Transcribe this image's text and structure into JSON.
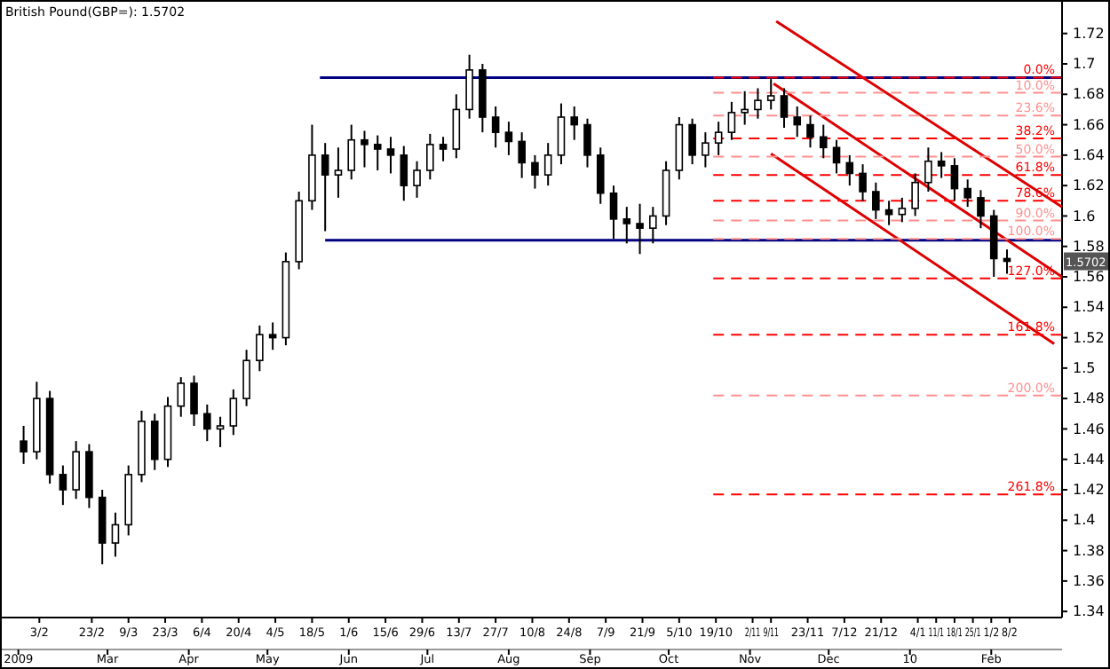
{
  "chart_data": {
    "type": "candlestick",
    "title": "British Pound(GBP=): 1.5702",
    "xlim": [
      "2009-01-19",
      "2010-02-28"
    ],
    "ylim": [
      1.336,
      1.742
    ],
    "yticks": [
      1.34,
      1.36,
      1.38,
      1.4,
      1.42,
      1.44,
      1.46,
      1.48,
      1.5,
      1.52,
      1.54,
      1.56,
      1.58,
      1.6,
      1.62,
      1.64,
      1.66,
      1.68,
      1.7,
      1.72
    ],
    "xticks": [
      {
        "value": "2009-02-03",
        "label": "3/2"
      },
      {
        "value": "2009-02-23",
        "label": "23/2"
      },
      {
        "value": "2009-03-09",
        "label": "9/3"
      },
      {
        "value": "2009-03-23",
        "label": "23/3"
      },
      {
        "value": "2009-04-06",
        "label": "6/4"
      },
      {
        "value": "2009-04-20",
        "label": "20/4"
      },
      {
        "value": "2009-05-04",
        "label": "4/5"
      },
      {
        "value": "2009-05-18",
        "label": "18/5"
      },
      {
        "value": "2009-06-01",
        "label": "1/6"
      },
      {
        "value": "2009-06-15",
        "label": "15/6"
      },
      {
        "value": "2009-06-29",
        "label": "29/6"
      },
      {
        "value": "2009-07-13",
        "label": "13/7"
      },
      {
        "value": "2009-07-27",
        "label": "27/7"
      },
      {
        "value": "2009-08-10",
        "label": "10/8"
      },
      {
        "value": "2009-08-24",
        "label": "24/8"
      },
      {
        "value": "2009-09-07",
        "label": "7/9"
      },
      {
        "value": "2009-09-21",
        "label": "21/9"
      },
      {
        "value": "2009-10-05",
        "label": "5/10"
      },
      {
        "value": "2009-10-19",
        "label": "19/10"
      },
      {
        "value": "2009-11-02",
        "label": "2/11"
      },
      {
        "value": "2009-11-09",
        "label": "9/11"
      },
      {
        "value": "2009-11-23",
        "label": "23/11"
      },
      {
        "value": "2009-12-07",
        "label": "7/12"
      },
      {
        "value": "2009-12-21",
        "label": "21/12"
      },
      {
        "value": "2010-01-04",
        "label": "4/1"
      },
      {
        "value": "2010-01-11",
        "label": "11/1"
      },
      {
        "value": "2010-01-18",
        "label": "18/1"
      },
      {
        "value": "2010-01-25",
        "label": "25/1"
      },
      {
        "value": "2010-02-01",
        "label": "1/2"
      },
      {
        "value": "2010-02-08",
        "label": "8/2"
      }
    ],
    "x2lim": [
      "2009-01-19",
      "2010-02-28"
    ],
    "x2ticks": [
      {
        "value": "2009-01-26",
        "label": "2009"
      },
      {
        "value": "2009-03-01",
        "label": "Mar"
      },
      {
        "value": "2009-04-01",
        "label": "Apr"
      },
      {
        "value": "2009-05-01",
        "label": "May"
      },
      {
        "value": "2009-06-01",
        "label": "Jun"
      },
      {
        "value": "2009-07-01",
        "label": "Jul"
      },
      {
        "value": "2009-08-01",
        "label": "Aug"
      },
      {
        "value": "2009-09-01",
        "label": "Sep"
      },
      {
        "value": "2009-10-01",
        "label": "Oct"
      },
      {
        "value": "2009-11-01",
        "label": "Nov"
      },
      {
        "value": "2009-12-01",
        "label": "Dec"
      },
      {
        "value": "2010-01-01",
        "label": "10"
      },
      {
        "value": "2010-02-01",
        "label": "Feb"
      }
    ],
    "annotations": [
      "1.5702"
    ],
    "series": [
      {
        "x": [
          "2009-01-28",
          "2009-02-02",
          "2009-02-07",
          "2009-02-12",
          "2009-02-17",
          "2009-02-22",
          "2009-02-27",
          "2009-03-04",
          "2009-03-09",
          "2009-03-14",
          "2009-03-19",
          "2009-03-24",
          "2009-03-29",
          "2009-04-03",
          "2009-04-08",
          "2009-04-13",
          "2009-04-18",
          "2009-04-23",
          "2009-04-28",
          "2009-05-03",
          "2009-05-08",
          "2009-05-13",
          "2009-05-18",
          "2009-05-23",
          "2009-05-28",
          "2009-06-02",
          "2009-06-07",
          "2009-06-12",
          "2009-06-17",
          "2009-06-22",
          "2009-06-27",
          "2009-07-02",
          "2009-07-07",
          "2009-07-12",
          "2009-07-17",
          "2009-07-22",
          "2009-07-27",
          "2009-08-01",
          "2009-08-06",
          "2009-08-11",
          "2009-08-16",
          "2009-08-21",
          "2009-08-26",
          "2009-08-31",
          "2009-09-05",
          "2009-09-10",
          "2009-09-15",
          "2009-09-20",
          "2009-09-25",
          "2009-09-30",
          "2009-10-05",
          "2009-10-10",
          "2009-10-15",
          "2009-10-20",
          "2009-10-25",
          "2009-10-30",
          "2009-11-04",
          "2009-11-09",
          "2009-11-14",
          "2009-11-19",
          "2009-11-24",
          "2009-11-29",
          "2009-12-04",
          "2009-12-09",
          "2009-12-14",
          "2009-12-19",
          "2009-12-24",
          "2009-12-29",
          "2010-01-03",
          "2010-01-08",
          "2010-01-13",
          "2010-01-18",
          "2010-01-23",
          "2010-01-28",
          "2010-02-02",
          "2010-02-07"
        ],
        "ohlc": [
          [
            1.452,
            1.462,
            1.437,
            1.445
          ],
          [
            1.445,
            1.491,
            1.44,
            1.48
          ],
          [
            1.48,
            1.485,
            1.424,
            1.43
          ],
          [
            1.43,
            1.436,
            1.41,
            1.42
          ],
          [
            1.42,
            1.452,
            1.414,
            1.445
          ],
          [
            1.445,
            1.45,
            1.408,
            1.415
          ],
          [
            1.415,
            1.42,
            1.371,
            1.385
          ],
          [
            1.385,
            1.405,
            1.376,
            1.397
          ],
          [
            1.397,
            1.436,
            1.39,
            1.43
          ],
          [
            1.43,
            1.472,
            1.425,
            1.465
          ],
          [
            1.465,
            1.47,
            1.433,
            1.44
          ],
          [
            1.44,
            1.481,
            1.435,
            1.475
          ],
          [
            1.475,
            1.494,
            1.468,
            1.49
          ],
          [
            1.49,
            1.495,
            1.462,
            1.47
          ],
          [
            1.47,
            1.476,
            1.452,
            1.46
          ],
          [
            1.46,
            1.468,
            1.448,
            1.462
          ],
          [
            1.462,
            1.486,
            1.456,
            1.48
          ],
          [
            1.48,
            1.512,
            1.475,
            1.505
          ],
          [
            1.505,
            1.528,
            1.498,
            1.522
          ],
          [
            1.522,
            1.53,
            1.512,
            1.52
          ],
          [
            1.52,
            1.576,
            1.515,
            1.57
          ],
          [
            1.57,
            1.616,
            1.565,
            1.61
          ],
          [
            1.61,
            1.66,
            1.604,
            1.64
          ],
          [
            1.64,
            1.648,
            1.59,
            1.627
          ],
          [
            1.627,
            1.645,
            1.612,
            1.63
          ],
          [
            1.63,
            1.66,
            1.624,
            1.65
          ],
          [
            1.65,
            1.656,
            1.632,
            1.647
          ],
          [
            1.647,
            1.653,
            1.63,
            1.644
          ],
          [
            1.644,
            1.652,
            1.628,
            1.64
          ],
          [
            1.64,
            1.646,
            1.61,
            1.62
          ],
          [
            1.62,
            1.636,
            1.612,
            1.63
          ],
          [
            1.63,
            1.654,
            1.624,
            1.647
          ],
          [
            1.647,
            1.652,
            1.636,
            1.644
          ],
          [
            1.644,
            1.68,
            1.638,
            1.67
          ],
          [
            1.67,
            1.706,
            1.664,
            1.696
          ],
          [
            1.696,
            1.7,
            1.655,
            1.665
          ],
          [
            1.665,
            1.672,
            1.645,
            1.655
          ],
          [
            1.655,
            1.662,
            1.64,
            1.649
          ],
          [
            1.649,
            1.655,
            1.625,
            1.635
          ],
          [
            1.635,
            1.64,
            1.618,
            1.627
          ],
          [
            1.627,
            1.648,
            1.62,
            1.64
          ],
          [
            1.64,
            1.674,
            1.634,
            1.665
          ],
          [
            1.665,
            1.672,
            1.65,
            1.66
          ],
          [
            1.66,
            1.664,
            1.632,
            1.64
          ],
          [
            1.64,
            1.645,
            1.608,
            1.615
          ],
          [
            1.615,
            1.62,
            1.585,
            1.598
          ],
          [
            1.598,
            1.606,
            1.582,
            1.595
          ],
          [
            1.595,
            1.608,
            1.575,
            1.592
          ],
          [
            1.592,
            1.606,
            1.582,
            1.6
          ],
          [
            1.6,
            1.636,
            1.594,
            1.63
          ],
          [
            1.63,
            1.665,
            1.624,
            1.66
          ],
          [
            1.66,
            1.664,
            1.634,
            1.64
          ],
          [
            1.64,
            1.655,
            1.632,
            1.648
          ],
          [
            1.648,
            1.662,
            1.64,
            1.655
          ],
          [
            1.655,
            1.675,
            1.65,
            1.668
          ],
          [
            1.668,
            1.682,
            1.66,
            1.67
          ],
          [
            1.67,
            1.684,
            1.664,
            1.676
          ],
          [
            1.676,
            1.69,
            1.67,
            1.679
          ],
          [
            1.679,
            1.684,
            1.658,
            1.665
          ],
          [
            1.665,
            1.672,
            1.652,
            1.66
          ],
          [
            1.66,
            1.666,
            1.645,
            1.652
          ],
          [
            1.652,
            1.66,
            1.638,
            1.645
          ],
          [
            1.645,
            1.65,
            1.628,
            1.635
          ],
          [
            1.635,
            1.64,
            1.62,
            1.628
          ],
          [
            1.628,
            1.634,
            1.61,
            1.616
          ],
          [
            1.616,
            1.622,
            1.598,
            1.604
          ],
          [
            1.604,
            1.61,
            1.594,
            1.601
          ],
          [
            1.601,
            1.612,
            1.596,
            1.605
          ],
          [
            1.605,
            1.628,
            1.6,
            1.622
          ],
          [
            1.622,
            1.645,
            1.616,
            1.636
          ],
          [
            1.636,
            1.642,
            1.625,
            1.633
          ],
          [
            1.633,
            1.638,
            1.61,
            1.618
          ],
          [
            1.618,
            1.624,
            1.606,
            1.612
          ],
          [
            1.612,
            1.617,
            1.592,
            1.6
          ],
          [
            1.6,
            1.604,
            1.56,
            1.572
          ],
          [
            1.572,
            1.578,
            1.562,
            1.5702
          ]
        ]
      },
      {
        "type": "line",
        "color": "#000080",
        "line_style": "solid",
        "x": [
          "2009-05-21",
          "2010-02-28"
        ],
        "values": [
          1.691,
          1.691
        ]
      },
      {
        "type": "line",
        "color": "#000080",
        "line_style": "solid",
        "x": [
          "2009-05-23",
          "2010-02-28"
        ],
        "values": [
          1.584,
          1.584
        ]
      },
      {
        "type": "line",
        "color": "#dd0000",
        "line_style": "solid",
        "x": [
          "2009-11-11",
          "2010-02-28"
        ],
        "values": [
          1.728,
          1.606
        ]
      },
      {
        "type": "line",
        "color": "#dd0000",
        "line_style": "solid",
        "x": [
          "2009-11-10",
          "2010-02-28"
        ],
        "values": [
          1.687,
          1.56
        ]
      },
      {
        "type": "line",
        "color": "#dd0000",
        "line_style": "solid",
        "x": [
          "2009-11-09",
          "2010-02-25"
        ],
        "values": [
          1.641,
          1.516
        ]
      },
      {
        "type": "line",
        "name": "0.0%",
        "color": "#ff0000",
        "line_style": "dashed",
        "x": [
          "2009-10-18",
          "2010-02-28"
        ],
        "values": [
          1.691,
          1.691
        ]
      },
      {
        "type": "line",
        "name": "10.0%",
        "color": "#ff9090",
        "line_style": "dashed",
        "x": [
          "2009-10-18",
          "2010-02-28"
        ],
        "values": [
          1.681,
          1.681
        ]
      },
      {
        "type": "line",
        "name": "23.6%",
        "color": "#ff9090",
        "line_style": "dashed",
        "x": [
          "2009-10-18",
          "2010-02-28"
        ],
        "values": [
          1.666,
          1.666
        ]
      },
      {
        "type": "line",
        "name": "38.2%",
        "color": "#ff0000",
        "line_style": "dashed",
        "x": [
          "2009-10-18",
          "2010-02-28"
        ],
        "values": [
          1.651,
          1.651
        ]
      },
      {
        "type": "line",
        "name": "50.0%",
        "color": "#ff9090",
        "line_style": "dashed",
        "x": [
          "2009-10-18",
          "2010-02-28"
        ],
        "values": [
          1.639,
          1.639
        ]
      },
      {
        "type": "line",
        "name": "61.8%",
        "color": "#ff0000",
        "line_style": "dashed",
        "x": [
          "2009-10-18",
          "2010-02-28"
        ],
        "values": [
          1.627,
          1.627
        ]
      },
      {
        "type": "line",
        "name": "78.6%",
        "color": "#ff0000",
        "line_style": "dashed",
        "x": [
          "2009-10-18",
          "2010-02-28"
        ],
        "values": [
          1.61,
          1.61
        ]
      },
      {
        "type": "line",
        "name": "90.0%",
        "color": "#ff9090",
        "line_style": "dashed",
        "x": [
          "2009-10-18",
          "2010-02-28"
        ],
        "values": [
          1.597,
          1.597
        ]
      },
      {
        "type": "line",
        "name": "100.0%",
        "color": "#ff9090",
        "line_style": "dashed",
        "x": [
          "2009-10-18",
          "2010-02-28"
        ],
        "values": [
          1.585,
          1.585
        ]
      },
      {
        "type": "line",
        "name": "127.0%",
        "color": "#ff0000",
        "line_style": "dashed",
        "x": [
          "2009-10-18",
          "2010-02-28"
        ],
        "values": [
          1.559,
          1.559
        ]
      },
      {
        "type": "line",
        "name": "161.8%",
        "color": "#ff0000",
        "line_style": "dashed",
        "x": [
          "2009-10-18",
          "2010-02-28"
        ],
        "values": [
          1.522,
          1.522
        ]
      },
      {
        "type": "line",
        "name": "200.0%",
        "color": "#ff9090",
        "line_style": "dashed",
        "x": [
          "2009-10-18",
          "2010-02-28"
        ],
        "values": [
          1.482,
          1.482
        ]
      },
      {
        "type": "line",
        "name": "261.8%",
        "color": "#ff0000",
        "line_style": "dashed",
        "x": [
          "2009-10-18",
          "2010-02-28"
        ],
        "values": [
          1.417,
          1.417
        ]
      }
    ]
  }
}
